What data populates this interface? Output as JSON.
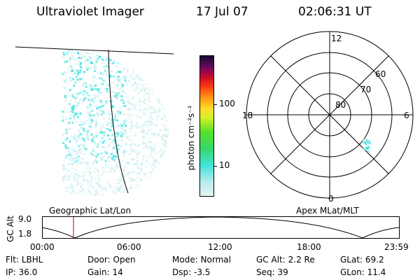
{
  "header": {
    "instrument": "Ultraviolet Imager",
    "date": "17 Jul 07",
    "time": "02:06:31 UT"
  },
  "colorbar": {
    "unit_label": "photon cm⁻²s⁻¹",
    "ticks": [
      "100",
      "10"
    ]
  },
  "polar": {
    "mlt_labels": [
      "12",
      "18",
      "6",
      "0"
    ],
    "lat_labels": [
      "60",
      "70",
      "80"
    ]
  },
  "orbit": {
    "ylabel": "GC Alt",
    "y_ticks": [
      "9.0",
      "1.8"
    ],
    "left_caption": "Geographic Lat/Lon",
    "right_caption": "Apex MLat/MLT",
    "x_ticks": [
      "00:00",
      "06:00",
      "12:00",
      "18:00",
      "23:59"
    ]
  },
  "info": {
    "row1": [
      {
        "label": "Flt:",
        "value": "LBHL"
      },
      {
        "label": "Door:",
        "value": "Open"
      },
      {
        "label": "Mode:",
        "value": "Normal"
      },
      {
        "label": "GC Alt:",
        "value": "2.2 Re"
      },
      {
        "label": "GLat:",
        "value": "69.2"
      }
    ],
    "row2": [
      {
        "label": "IP:",
        "value": "36.0"
      },
      {
        "label": "Gain:",
        "value": "14"
      },
      {
        "label": "Dsp:",
        "value": "-3.5"
      },
      {
        "label": "Seq:",
        "value": "39"
      },
      {
        "label": "GLon:",
        "value": "11.4"
      }
    ]
  },
  "colors": {
    "auroral_cyan": "#2fe0e0",
    "auroral_pale": "#cfeeee",
    "marker": "#cc0000"
  }
}
